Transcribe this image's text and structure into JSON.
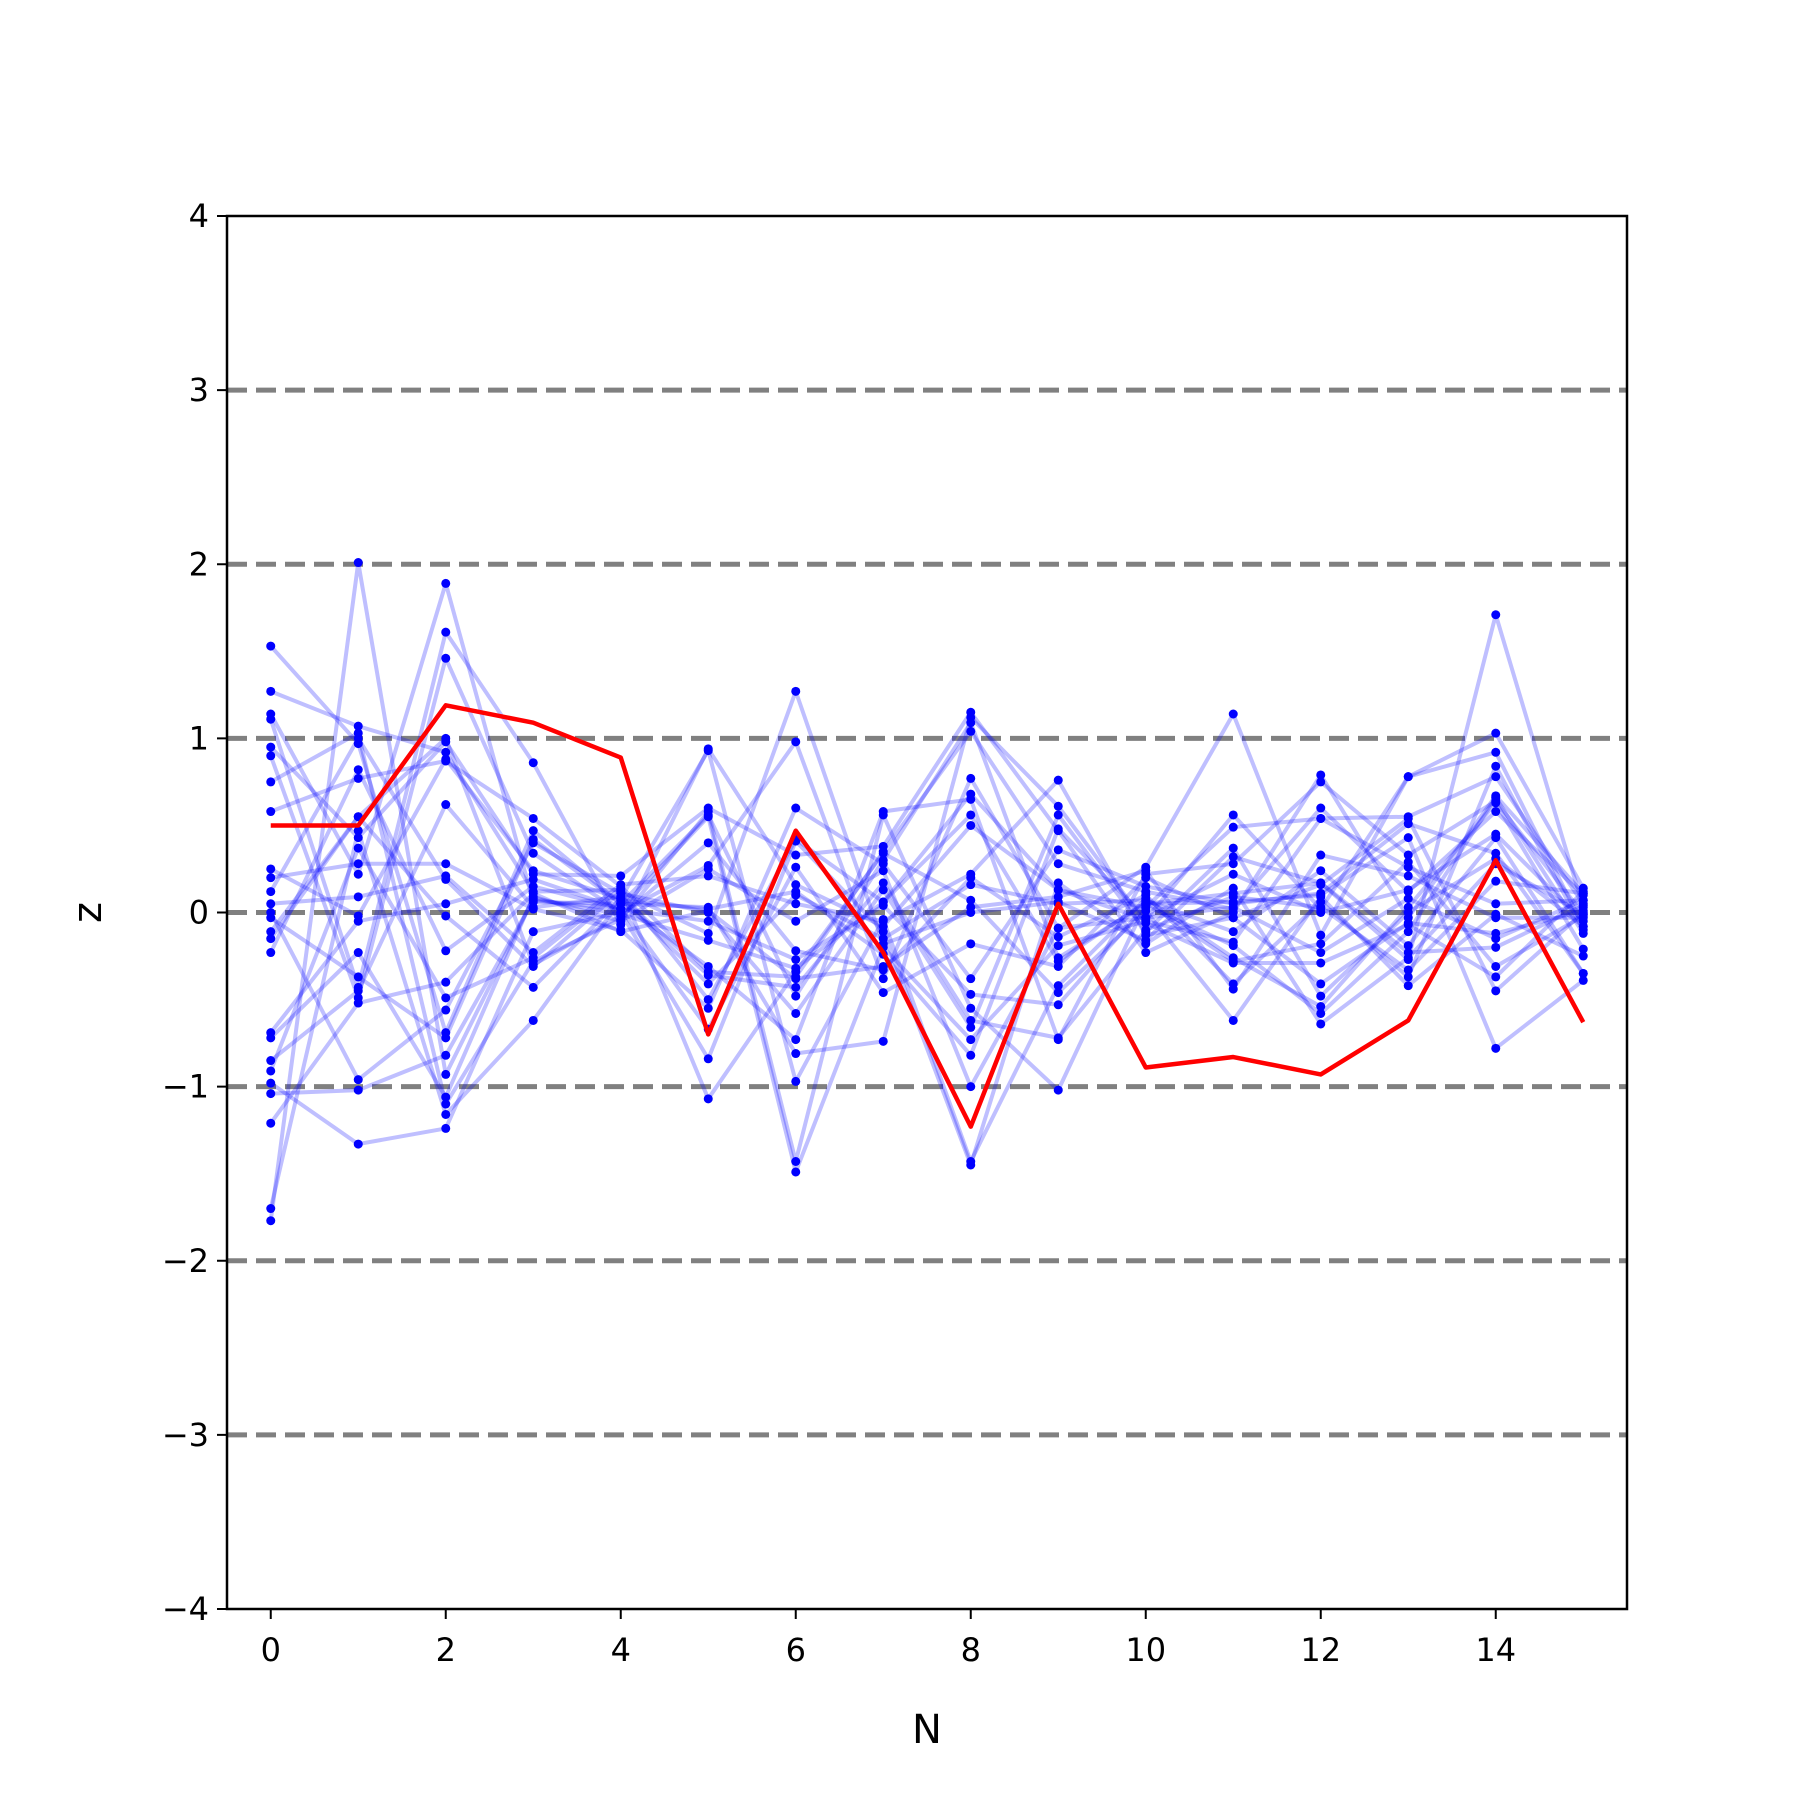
{
  "chart_data": {
    "type": "line",
    "xlabel": "N",
    "ylabel": "z",
    "xlim": [
      -0.5,
      15.5
    ],
    "ylim": [
      -4,
      4
    ],
    "xticks": [
      0,
      2,
      4,
      6,
      8,
      10,
      12,
      14
    ],
    "yticks": [
      -4,
      -3,
      -2,
      -1,
      0,
      1,
      2,
      3,
      4
    ],
    "xtick_labels": [
      "0",
      "2",
      "4",
      "6",
      "8",
      "10",
      "12",
      "14"
    ],
    "ytick_labels": [
      "−4",
      "−3",
      "−2",
      "−1",
      "0",
      "1",
      "2",
      "3",
      "4"
    ],
    "hlines": [
      -3,
      -2,
      -1,
      0,
      1,
      2,
      3
    ],
    "hline_color": "#808080",
    "grid": false,
    "x": [
      0,
      1,
      2,
      3,
      4,
      5,
      6,
      7,
      8,
      9,
      10,
      11,
      12,
      13,
      14,
      15
    ],
    "highlight_series": {
      "color": "#ff0000",
      "values": [
        0.5,
        0.5,
        1.19,
        1.09,
        0.89,
        -0.7,
        0.47,
        -0.23,
        -1.23,
        0.05,
        -0.89,
        -0.83,
        -0.93,
        -0.62,
        0.3,
        -0.63
      ]
    },
    "background_series_color": "#0000ff",
    "background_series": [
      [
        1.53,
        0.97,
        -0.69,
        0.47,
        0.05,
        0.56,
        -0.48,
        0.3,
        1.09,
        -0.26,
        0.05,
        0.11,
        0.17,
        -0.27,
        1.71,
        0.03
      ],
      [
        1.27,
        1.07,
        0.92,
        0.12,
        0.13,
        -0.5,
        0.42,
        0.06,
        0.68,
        0.13,
        -0.04,
        0.56,
        0.02,
        0.78,
        1.03,
        0.14
      ],
      [
        1.14,
        0.22,
        1.89,
        0.06,
        0.05,
        -0.31,
        -0.73,
        0.58,
        0.65,
        -0.73,
        0.22,
        0.28,
        0.75,
        0.33,
        0.64,
        -0.01
      ],
      [
        1.11,
        -0.43,
        1.61,
        0.86,
        -0.07,
        0.94,
        0.16,
        -0.08,
        0.5,
        0.13,
        0.03,
        0.49,
        0.54,
        0.55,
        0.78,
        0.05
      ],
      [
        0.95,
        0.43,
        0.98,
        0.22,
        0.21,
        0.6,
        0.33,
        0.38,
        1.15,
        0.47,
        -0.23,
        0.0,
        0.79,
        -0.03,
        0.67,
        0.11
      ],
      [
        0.9,
        -0.49,
        1.46,
        0.34,
        0.0,
        0.27,
        0.98,
        -0.38,
        0.77,
        -0.09,
        0.26,
        1.14,
        -0.13,
        0.78,
        0.92,
        -0.08
      ],
      [
        0.75,
        1.03,
        -1.1,
        -0.28,
        -0.04,
        0.58,
        -1.43,
        0.56,
        -0.55,
        -1.02,
        0.05,
        0.06,
        0.1,
        0.43,
        -0.78,
        -0.39
      ],
      [
        0.58,
        0.77,
        0.87,
        0.54,
        0.15,
        -0.34,
        -0.37,
        0.35,
        1.04,
        0.28,
        0.12,
        0.02,
        0.6,
        0.12,
        0.58,
        0.1
      ],
      [
        0.25,
        -0.02,
        0.88,
        0.24,
        0.08,
        0.93,
        -0.97,
        -0.04,
        -1.43,
        -0.42,
        0.08,
        -0.26,
        -0.54,
        0.03,
        0.63,
        -0.21
      ],
      [
        0.2,
        0.28,
        0.28,
        0.02,
        -0.1,
        -0.55,
        0.6,
        0.28,
        -0.38,
        0.36,
        0.15,
        0.05,
        0.11,
        0.51,
        0.34,
        -0.35
      ],
      [
        0.12,
        1.0,
        0.19,
        -0.31,
        0.12,
        -0.12,
        1.27,
        -0.18,
        0.0,
        0.06,
        -0.16,
        0.32,
        0.17,
        -0.23,
        -0.2,
        0.04
      ],
      [
        0.05,
        0.09,
        0.21,
        -0.23,
        0.16,
        0.21,
        0.05,
        -0.05,
        0.22,
        0.76,
        -0.13,
        -0.03,
        0.16,
        0.54,
        -0.45,
        0.0
      ],
      [
        -0.03,
        -0.37,
        -0.72,
        0.42,
        0.05,
        0.03,
        -0.81,
        -0.74,
        1.12,
        0.61,
        -0.06,
        -0.29,
        -0.29,
        -0.07,
        -0.37,
        0.12
      ],
      [
        -0.11,
        0.55,
        -0.02,
        -0.43,
        0.08,
        -0.41,
        0.1,
        -0.15,
        0.16,
        0.05,
        0.07,
        -0.11,
        0.24,
        -0.19,
        0.43,
        -0.35
      ],
      [
        -0.23,
        0.82,
        -0.22,
        0.15,
        0.02,
        -0.67,
        0.26,
        -0.46,
        -0.18,
        -0.31,
        0.2,
        -0.03,
        -0.41,
        -0.06,
        -0.12,
        0.01
      ],
      [
        -0.69,
        -0.05,
        0.05,
        0.19,
        0.02,
        -0.05,
        -0.27,
        0.04,
        -0.47,
        -0.53,
        0.04,
        -0.19,
        -0.58,
        -0.11,
        0.66,
        -0.12
      ],
      [
        -0.72,
        -0.23,
        -1.06,
        0.09,
        -0.05,
        0.25,
        -0.05,
        0.24,
        -1.0,
        -0.09,
        -0.03,
        0.22,
        0.0,
        0.13,
        0.45,
        -0.05
      ],
      [
        -0.85,
        -0.45,
        0.62,
        0.03,
        0.09,
        -0.36,
        -0.43,
        0.17,
        -0.62,
        -0.72,
        -0.1,
        0.09,
        0.03,
        -0.33,
        0.18,
        0.11
      ],
      [
        -0.91,
        0.37,
        -0.49,
        -0.26,
        0.14,
        -1.07,
        -0.34,
        0.34,
        0.07,
        -0.46,
        0.01,
        -0.62,
        0.09,
        -0.42,
        -0.01,
        -0.25
      ],
      [
        -0.98,
        -1.33,
        -1.24,
        -0.11,
        0.0,
        -0.84,
        0.41,
        -0.11,
        -1.45,
        0.17,
        -0.18,
        0.14,
        -0.64,
        -0.26,
        0.28,
        -0.01
      ],
      [
        -1.04,
        -1.02,
        -0.82,
        0.07,
        0.02,
        0.55,
        -1.49,
        -0.2,
        -0.73,
        -0.19,
        -0.05,
        -0.17,
        0.54,
        0.26,
        0.05,
        0.07
      ],
      [
        -1.21,
        -0.52,
        -0.4,
        0.11,
        -0.11,
        0.01,
        -0.38,
        -0.31,
        0.03,
        0.09,
        0.24,
        -0.44,
        0.33,
        0.21,
        -0.03,
        -0.03
      ],
      [
        -1.7,
        0.47,
        -1.16,
        -0.62,
        0.07,
        0.02,
        0.12,
        -0.24,
        -0.82,
        0.48,
        -0.03,
        0.03,
        -0.23,
        0.08,
        -0.15,
        0.07
      ],
      [
        -1.77,
        2.01,
        -0.93,
        0.08,
        -0.01,
        -0.16,
        -0.32,
        0.06,
        0.56,
        -0.28,
        0.06,
        -0.28,
        -0.18,
        0.29,
        -0.31,
        -0.02
      ],
      [
        0.0,
        -0.96,
        -0.56,
        0.4,
        0.11,
        0.0,
        -0.58,
        0.13,
        -0.66,
        0.56,
        -0.11,
        0.37,
        -0.48,
        0.0,
        0.31,
        -0.08
      ],
      [
        -0.15,
        0.55,
        1.0,
        -0.3,
        -0.02,
        0.4,
        -0.22,
        -0.33,
        0.2,
        -0.14,
        0.1,
        -0.41,
        0.06,
        -0.37,
        0.84,
        -0.1
      ]
    ]
  }
}
